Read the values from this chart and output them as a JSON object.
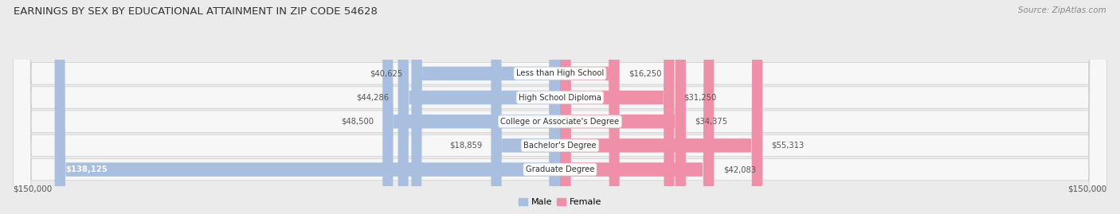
{
  "title": "EARNINGS BY SEX BY EDUCATIONAL ATTAINMENT IN ZIP CODE 54628",
  "source": "Source: ZipAtlas.com",
  "categories": [
    "Less than High School",
    "High School Diploma",
    "College or Associate's Degree",
    "Bachelor's Degree",
    "Graduate Degree"
  ],
  "male_values": [
    40625,
    44286,
    48500,
    18859,
    138125
  ],
  "female_values": [
    16250,
    31250,
    34375,
    55313,
    42083
  ],
  "male_color": "#a8bfdf",
  "female_color": "#f08fa8",
  "male_label": "Male",
  "female_label": "Female",
  "x_max": 150000,
  "x_min": -150000,
  "axis_label_left": "$150,000",
  "axis_label_right": "$150,000",
  "background_color": "#ebebeb",
  "row_bg_color": "#f7f7f7",
  "title_color": "#333333",
  "source_color": "#888888",
  "value_color": "#555555"
}
